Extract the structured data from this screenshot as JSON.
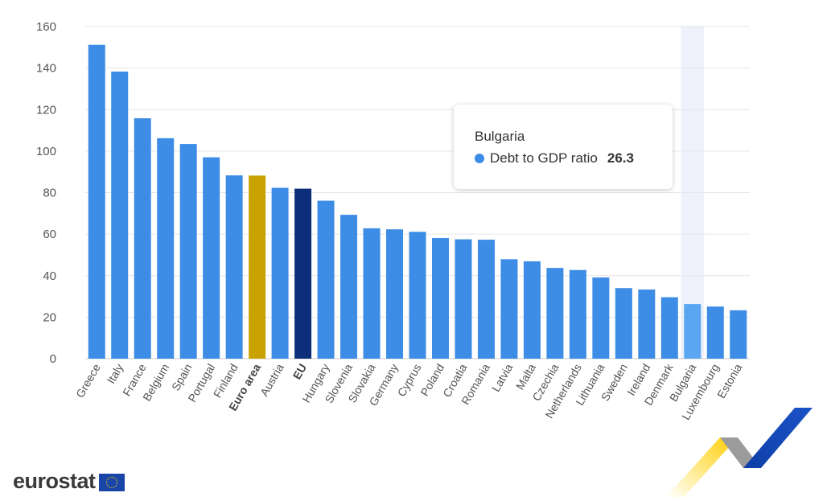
{
  "chart_data": {
    "type": "bar",
    "categories": [
      "Greece",
      "Italy",
      "France",
      "Belgium",
      "Spain",
      "Portugal",
      "Finland",
      "Euro area",
      "Austria",
      "EU",
      "Hungary",
      "Slovenia",
      "Slovakia",
      "Germany",
      "Cyprus",
      "Poland",
      "Croatia",
      "Romania",
      "Latvia",
      "Malta",
      "Czechia",
      "Netherlands",
      "Lithuania",
      "Sweden",
      "Ireland",
      "Denmark",
      "Bulgaria",
      "Luxembourg",
      "Estonia"
    ],
    "series": [
      {
        "name": "Debt to GDP ratio",
        "values": [
          151.2,
          138.3,
          115.8,
          106.2,
          103.4,
          97.0,
          88.3,
          88.2,
          82.3,
          81.9,
          76.1,
          69.3,
          62.8,
          62.3,
          61.1,
          58.1,
          57.5,
          57.3,
          47.9,
          46.9,
          43.7,
          42.7,
          39.1,
          34.0,
          33.3,
          29.6,
          26.3,
          25.1,
          23.3
        ]
      }
    ],
    "ylim": [
      0,
      160
    ],
    "yticks": [
      0,
      20,
      40,
      60,
      80,
      100,
      120,
      140,
      160
    ],
    "grid": true,
    "bold_categories": [
      "Euro area",
      "EU"
    ],
    "colors": {
      "default": "#3d8ce6",
      "Euro area": "#c9a200",
      "EU": "#0d2f7a",
      "hover": "#5aa6f2",
      "hover_band": "#eef1fb",
      "grid": "#e6e6e6",
      "axis": "#cccccc"
    },
    "hovered_category": "Bulgaria"
  },
  "tooltip": {
    "title": "Bulgaria",
    "series_label": "Debt to GDP ratio",
    "value": "26.3"
  },
  "branding": {
    "logo_text": "eurostat",
    "flag_icon": "eu-flag-icon",
    "decoration_icon": "eurostat-ribbon-icon"
  }
}
